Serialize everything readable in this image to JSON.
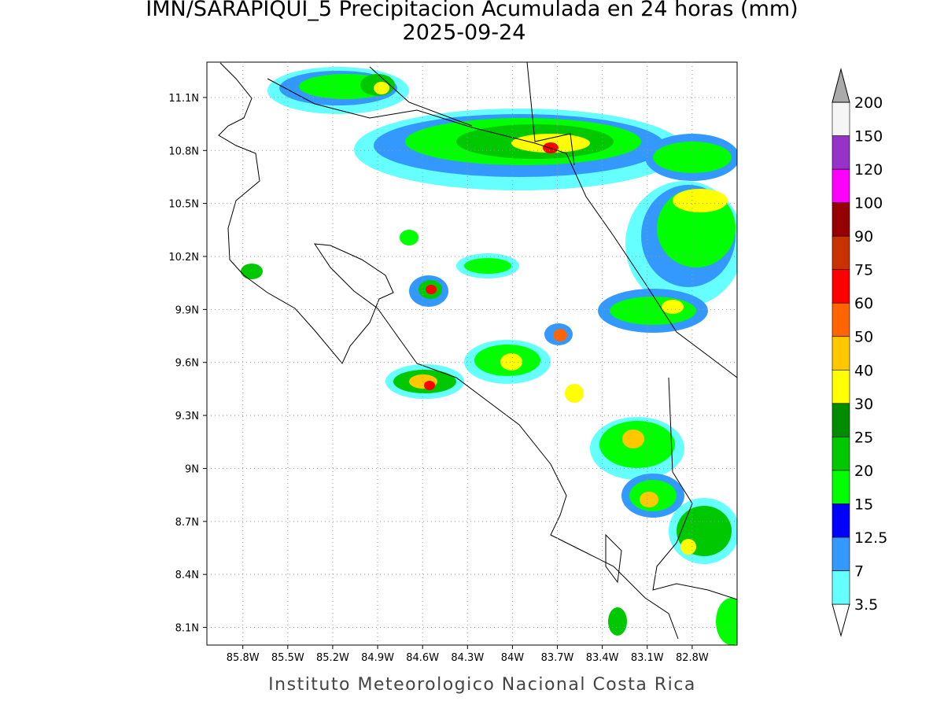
{
  "title": "IMN/SARAPIQUI_5 Precipitacion Acumulada en 24 horas (mm)",
  "subtitle": "2025-09-24",
  "footer": "Instituto Meteorologico Nacional Costa Rica",
  "map": {
    "lon_lim": [
      -86.04,
      -82.5
    ],
    "lat_lim": [
      8.0,
      11.3
    ],
    "grid": true,
    "lon_ticks": [
      {
        "value": -85.8,
        "label": "85.8W"
      },
      {
        "value": -85.5,
        "label": "85.5W"
      },
      {
        "value": -85.2,
        "label": "85.2W"
      },
      {
        "value": -84.9,
        "label": "84.9W"
      },
      {
        "value": -84.6,
        "label": "84.6W"
      },
      {
        "value": -84.3,
        "label": "84.3W"
      },
      {
        "value": -84.0,
        "label": "84W"
      },
      {
        "value": -83.7,
        "label": "83.7W"
      },
      {
        "value": -83.4,
        "label": "83.4W"
      },
      {
        "value": -83.1,
        "label": "83.1W"
      },
      {
        "value": -82.8,
        "label": "82.8W"
      }
    ],
    "lat_ticks": [
      {
        "value": 11.1,
        "label": "11.1N"
      },
      {
        "value": 10.8,
        "label": "10.8N"
      },
      {
        "value": 10.5,
        "label": "10.5N"
      },
      {
        "value": 10.2,
        "label": "10.2N"
      },
      {
        "value": 9.9,
        "label": "9.9N"
      },
      {
        "value": 9.6,
        "label": "9.6N"
      },
      {
        "value": 9.3,
        "label": "9.3N"
      },
      {
        "value": 9.0,
        "label": "9N"
      },
      {
        "value": 8.7,
        "label": "8.7N"
      },
      {
        "value": 8.4,
        "label": "8.4N"
      },
      {
        "value": 8.1,
        "label": "8.1N"
      }
    ]
  },
  "colorbar": {
    "levels": [
      3.5,
      7,
      12.5,
      15,
      20,
      25,
      30,
      40,
      50,
      60,
      75,
      90,
      100,
      120,
      150,
      200
    ],
    "colors": [
      "#ffffff",
      "#66ffff",
      "#3399ff",
      "#0000ff",
      "#00ff00",
      "#00c800",
      "#008c00",
      "#ffff00",
      "#ffc800",
      "#ff6400",
      "#ff0000",
      "#c83200",
      "#960000",
      "#ff00ff",
      "#9632c8",
      "#f5f5f5",
      "#aaaaaa"
    ]
  }
}
